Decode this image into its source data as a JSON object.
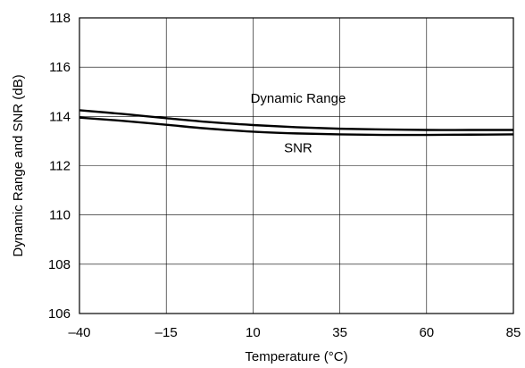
{
  "chart_data": {
    "type": "line",
    "title": "",
    "xlabel": "Temperature (°C)",
    "ylabel": "Dynamic Range and SNR (dB)",
    "xlim": [
      -40,
      85
    ],
    "ylim": [
      106,
      118
    ],
    "x_ticks": [
      -40,
      -15,
      10,
      35,
      60,
      85
    ],
    "x_tick_labels": [
      "–40",
      "–15",
      "10",
      "35",
      "60",
      "85"
    ],
    "y_ticks": [
      106,
      108,
      110,
      112,
      114,
      116,
      118
    ],
    "y_tick_labels": [
      "106",
      "108",
      "110",
      "112",
      "114",
      "116",
      "118"
    ],
    "grid": true,
    "series": [
      {
        "name": "Dynamic Range",
        "x": [
          -40,
          -27.5,
          -15,
          -2.5,
          10,
          22.5,
          35,
          47.5,
          60,
          72.5,
          85
        ],
        "y": [
          114.25,
          114.1,
          113.93,
          113.77,
          113.65,
          113.56,
          113.5,
          113.47,
          113.45,
          113.45,
          113.45
        ]
      },
      {
        "name": "SNR",
        "x": [
          -40,
          -27.5,
          -15,
          -2.5,
          10,
          22.5,
          35,
          47.5,
          60,
          72.5,
          85
        ],
        "y": [
          113.95,
          113.82,
          113.66,
          113.5,
          113.38,
          113.31,
          113.27,
          113.25,
          113.25,
          113.26,
          113.27
        ]
      }
    ],
    "annotations": [
      {
        "text": "Dynamic Range",
        "x": 23,
        "y": 114.55
      },
      {
        "text": "SNR",
        "x": 23,
        "y": 112.55
      }
    ],
    "line_color": "#000000",
    "grid_color": "#000000"
  }
}
